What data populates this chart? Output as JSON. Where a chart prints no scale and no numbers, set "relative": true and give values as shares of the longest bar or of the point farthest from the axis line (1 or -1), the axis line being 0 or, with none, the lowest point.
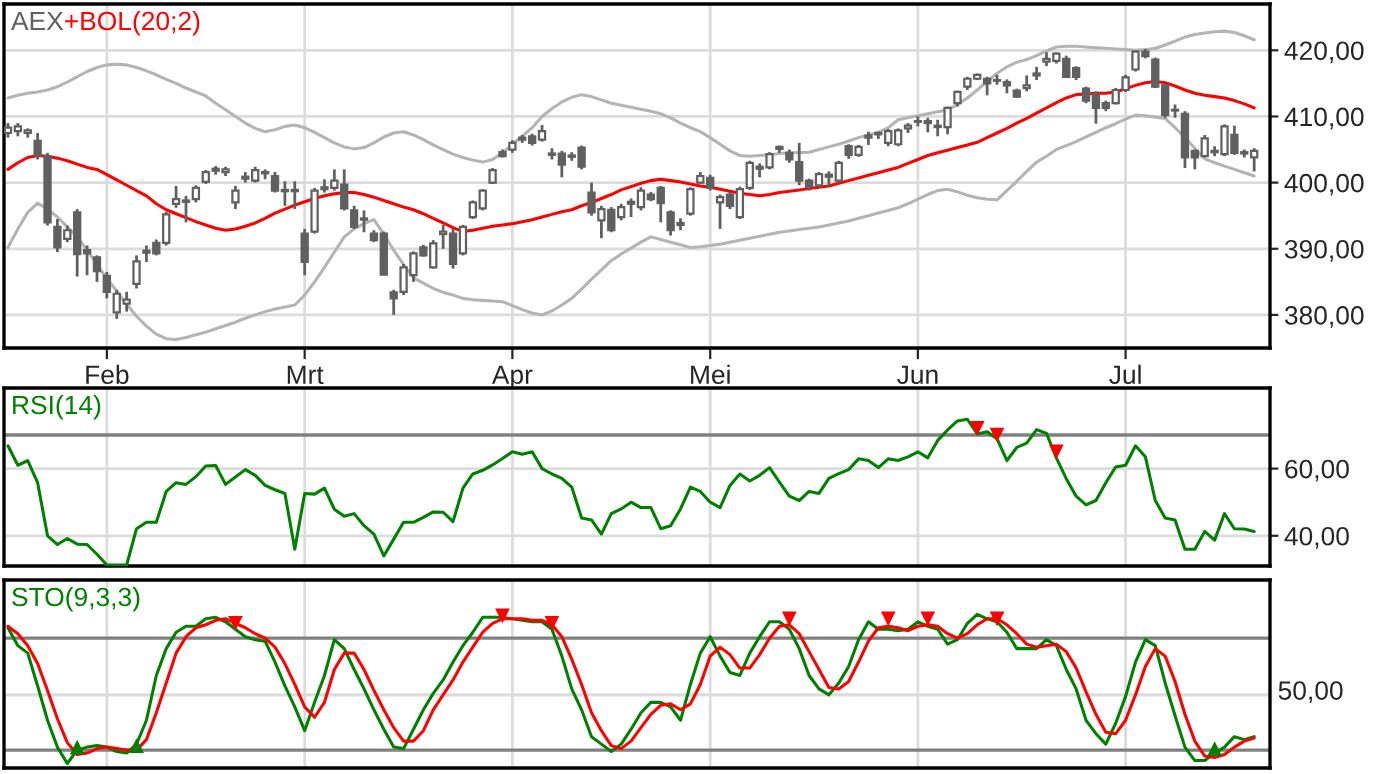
{
  "chart_data": [
    {
      "type": "candlestick",
      "categories": [
        null,
        null,
        null,
        null,
        null,
        null,
        null,
        null,
        null,
        null,
        "Feb",
        null,
        null,
        null,
        null,
        null,
        null,
        null,
        null,
        null,
        null,
        null,
        null,
        null,
        null,
        null,
        null,
        null,
        null,
        null,
        "Mrt",
        null,
        null,
        null,
        null,
        null,
        null,
        null,
        null,
        null,
        null,
        null,
        null,
        null,
        null,
        null,
        null,
        null,
        null,
        null,
        null,
        "Apr",
        null,
        null,
        null,
        null,
        null,
        null,
        null,
        null,
        null,
        null,
        null,
        null,
        null,
        null,
        null,
        null,
        null,
        null,
        null,
        "Mei",
        null,
        null,
        null,
        null,
        null,
        null,
        null,
        null,
        null,
        null,
        null,
        null,
        null,
        null,
        null,
        null,
        null,
        null,
        null,
        null,
        "Jun",
        null,
        null,
        null,
        null,
        null,
        null,
        null,
        null,
        null,
        null,
        null,
        null,
        null,
        null,
        null,
        null,
        null,
        null,
        null,
        null,
        "Jul",
        null,
        null,
        null,
        null,
        null,
        null,
        null,
        null,
        null,
        null,
        null,
        null,
        null
      ],
      "ylim": [
        375,
        427
      ],
      "yticks": [
        {
          "value": 380,
          "label": "380,00"
        },
        {
          "value": 390,
          "label": "390,00"
        },
        {
          "value": 400,
          "label": "400,00"
        },
        {
          "value": 410,
          "label": "410,00"
        },
        {
          "value": 420,
          "label": "420,00"
        }
      ],
      "grid": true,
      "legend": "top left",
      "series": [
        {
          "type": "candlestick",
          "name": "AEX",
          "color": "#606060",
          "ohlc": [
            [
              407.5,
              409,
              406.8,
              408.3
            ],
            [
              407.8,
              409,
              407,
              408.5
            ],
            [
              407.5,
              408.2,
              406.8,
              407.9
            ],
            [
              406.3,
              407.5,
              403.5,
              404.1
            ],
            [
              404,
              404.5,
              393.5,
              394
            ],
            [
              393.3,
              394.5,
              389.5,
              390.2
            ],
            [
              391.5,
              393.5,
              391,
              392.8
            ],
            [
              395.5,
              396,
              385.8,
              389.2
            ],
            [
              389.8,
              390.5,
              386,
              389.3
            ],
            [
              388.7,
              389,
              385,
              386.6
            ],
            [
              385.9,
              386.5,
              382.5,
              383.5
            ],
            [
              380.4,
              383.8,
              379.4,
              383.2
            ],
            [
              381.7,
              383.5,
              380.5,
              382.3
            ],
            [
              384.7,
              389,
              384,
              388.1
            ],
            [
              389.4,
              390.5,
              388,
              389.7
            ],
            [
              390.9,
              391.4,
              389,
              389.3
            ],
            [
              390.9,
              395.6,
              390.5,
              395.2
            ],
            [
              396.8,
              399.5,
              396.2,
              397.5
            ],
            [
              397.3,
              398,
              394,
              397.1
            ],
            [
              397.5,
              399.6,
              397,
              399.2
            ],
            [
              400.1,
              401.9,
              399.8,
              401.6
            ],
            [
              401.8,
              402.5,
              401.2,
              402.1
            ],
            [
              401.6,
              402.4,
              401,
              402
            ],
            [
              397,
              399.5,
              396,
              398.8
            ],
            [
              400.6,
              401.6,
              400,
              400.9
            ],
            [
              400.3,
              402.4,
              400,
              401.9
            ],
            [
              401.4,
              402,
              400.5,
              401.6
            ],
            [
              401,
              401.6,
              398.5,
              398.8
            ],
            [
              398.9,
              400.2,
              396.5,
              398.7
            ],
            [
              398.7,
              400.2,
              396,
              398.9
            ],
            [
              392.3,
              393,
              386,
              388
            ],
            [
              392.6,
              399.2,
              392.3,
              398.8
            ],
            [
              399,
              400.5,
              398.5,
              399.3
            ],
            [
              399.2,
              402,
              398.8,
              400.3
            ],
            [
              399.7,
              402,
              395.8,
              396.1
            ],
            [
              395.8,
              396.5,
              393,
              393.3
            ],
            [
              394.4,
              395.8,
              392.5,
              394.6
            ],
            [
              392.3,
              392.8,
              391,
              391.3
            ],
            [
              392.3,
              392.6,
              386,
              386.1
            ],
            [
              383.4,
              383.8,
              380,
              382.5
            ],
            [
              383.5,
              387.7,
              383,
              387.2
            ],
            [
              386,
              389.6,
              385,
              389.3
            ],
            [
              390.2,
              390.6,
              388.8,
              389
            ],
            [
              387.2,
              391.3,
              387,
              390.8
            ],
            [
              392.2,
              393.6,
              390,
              392.6
            ],
            [
              392.3,
              393,
              387,
              387.7
            ],
            [
              389.3,
              393.6,
              389,
              393.3
            ],
            [
              394.8,
              397.3,
              394.5,
              397
            ],
            [
              396.1,
              399,
              395.8,
              398.8
            ],
            [
              400,
              402.2,
              399.8,
              401.9
            ],
            [
              404.6,
              405,
              403.8,
              404
            ],
            [
              405,
              406.4,
              404.5,
              406
            ],
            [
              406.5,
              407.2,
              406,
              406.8
            ],
            [
              407,
              407.4,
              405.6,
              406
            ],
            [
              406.5,
              408.7,
              406.2,
              407.8
            ],
            [
              404.2,
              405.2,
              403.5,
              404.4
            ],
            [
              404.4,
              404.8,
              400.8,
              402.7
            ],
            [
              403.9,
              404.6,
              403.3,
              404.1
            ],
            [
              405.3,
              405.6,
              402,
              402.4
            ],
            [
              398.5,
              400,
              395,
              395.5
            ],
            [
              394.3,
              396.5,
              391.6,
              396
            ],
            [
              395.9,
              396.3,
              392.5,
              392.8
            ],
            [
              394.8,
              396.8,
              394.3,
              396.3
            ],
            [
              396.8,
              397.6,
              394.8,
              397.1
            ],
            [
              396.3,
              399.3,
              395.8,
              398.8
            ],
            [
              398.2,
              398.6,
              397.2,
              397.5
            ],
            [
              399.2,
              399.5,
              394,
              396.9
            ],
            [
              395.5,
              395.8,
              392,
              392.8
            ],
            [
              393.6,
              394.6,
              392.8,
              393.9
            ],
            [
              395.3,
              399.3,
              395,
              399
            ],
            [
              400,
              401.6,
              399.8,
              401
            ],
            [
              400.7,
              401.2,
              398.8,
              399.2
            ],
            [
              397,
              398.2,
              393,
              397.8
            ],
            [
              398.2,
              398.6,
              396,
              396.5
            ],
            [
              394.8,
              399.4,
              394.5,
              399
            ],
            [
              399.2,
              403.3,
              398.9,
              403
            ],
            [
              402.1,
              402.9,
              400.8,
              402.4
            ],
            [
              402.3,
              404.6,
              402,
              404.3
            ],
            [
              405.1,
              405.6,
              404.5,
              405.4
            ],
            [
              404.5,
              405,
              403,
              403.5
            ],
            [
              403.1,
              406,
              399.6,
              400.3
            ],
            [
              400.3,
              400.6,
              398.8,
              399.4
            ],
            [
              399.6,
              401.6,
              399.3,
              401.3
            ],
            [
              400.9,
              401.7,
              399.4,
              401.2
            ],
            [
              400.3,
              403.3,
              400,
              403
            ],
            [
              405.5,
              405.8,
              403.6,
              404.2
            ],
            [
              404.2,
              405.7,
              403.9,
              405.4
            ],
            [
              406.8,
              407.7,
              405.7,
              407.1
            ],
            [
              407.3,
              407.7,
              406.6,
              407.5
            ],
            [
              406,
              408.1,
              405.5,
              407.8
            ],
            [
              405.8,
              408.2,
              405.5,
              407.9
            ],
            [
              408.2,
              409,
              407.5,
              408.6
            ],
            [
              409.2,
              410,
              408.5,
              409.3
            ],
            [
              409,
              409.8,
              407.6,
              409.3
            ],
            [
              408.6,
              409.5,
              407,
              408.4
            ],
            [
              408.4,
              411.5,
              407.3,
              411.3
            ],
            [
              412,
              413.9,
              411.5,
              413.7
            ],
            [
              414.5,
              416,
              414,
              415.7
            ],
            [
              415.7,
              416.5,
              415.5,
              416.3
            ],
            [
              415.7,
              416,
              413.2,
              415
            ],
            [
              415.4,
              416.3,
              414.8,
              415.5
            ],
            [
              415.2,
              415.6,
              413.5,
              414.7
            ],
            [
              413.9,
              414.2,
              412.8,
              413
            ],
            [
              414.3,
              416.2,
              413.8,
              414.7
            ],
            [
              416.2,
              417.5,
              415.5,
              416.5
            ],
            [
              418.3,
              419.7,
              417.6,
              418.7
            ],
            [
              418.4,
              419.7,
              418,
              419.5
            ],
            [
              418.7,
              419.2,
              415.8,
              416
            ],
            [
              417.3,
              417.6,
              415.5,
              416
            ],
            [
              414.2,
              414.5,
              412,
              412.4
            ],
            [
              413.3,
              413.8,
              408.9,
              411.3
            ],
            [
              412,
              412.4,
              410.8,
              411.3
            ],
            [
              412,
              414.3,
              411.8,
              414
            ],
            [
              414,
              416.3,
              413.7,
              415.9
            ],
            [
              417.1,
              420,
              416.8,
              419.8
            ],
            [
              419.8,
              420.2,
              418.8,
              419.1
            ],
            [
              418.6,
              418.9,
              414.3,
              414.5
            ],
            [
              414.7,
              415,
              409.8,
              410.2
            ],
            [
              410.9,
              411.8,
              409.8,
              411
            ],
            [
              410.4,
              410.8,
              402.2,
              403.8
            ],
            [
              404.8,
              405,
              402,
              403.8
            ],
            [
              404,
              407.2,
              403.8,
              406.7
            ],
            [
              404.6,
              405.5,
              404,
              404.8
            ],
            [
              404.3,
              408.8,
              404,
              408.5
            ],
            [
              407.2,
              408.6,
              404.2,
              404.5
            ],
            [
              404.4,
              405,
              403.8,
              404.6
            ],
            [
              403.8,
              405.2,
              401.7,
              404.8
            ]
          ]
        },
        {
          "type": "line",
          "name": "+BOL(20;2)",
          "color": "#ff0000",
          "values": [
            402.0,
            403.0,
            403.8,
            404.1,
            404.0,
            403.7,
            403.3,
            402.8,
            402.3,
            402.0,
            401.2,
            400.4,
            399.6,
            398.8,
            398.0,
            396.8,
            395.9,
            395.3,
            394.7,
            394.1,
            393.6,
            393.1,
            392.8,
            393.0,
            393.4,
            393.9,
            394.6,
            395.4,
            396.0,
            396.6,
            397.1,
            397.6,
            398.0,
            398.3,
            398.5,
            398.5,
            398.2,
            397.8,
            397.3,
            396.8,
            396.3,
            395.9,
            395.3,
            394.6,
            393.9,
            393.2,
            392.6,
            392.8,
            393.1,
            393.4,
            393.6,
            393.8,
            394.1,
            394.4,
            394.8,
            395.2,
            395.6,
            395.9,
            396.5,
            397.0,
            397.6,
            398.2,
            398.9,
            399.4,
            399.9,
            400.3,
            400.5,
            400.3,
            400.1,
            399.8,
            399.5,
            399.3,
            399.0,
            398.7,
            398.4,
            398.2,
            398.0,
            398.2,
            398.5,
            398.7,
            398.9,
            399.1,
            399.3,
            399.5,
            399.9,
            400.3,
            400.7,
            401.1,
            401.5,
            401.9,
            402.3,
            402.9,
            403.5,
            404.1,
            404.5,
            404.9,
            405.3,
            405.7,
            406.1,
            406.8,
            407.5,
            408.2,
            409.0,
            409.7,
            410.5,
            411.3,
            412.1,
            412.8,
            413.3,
            413.4,
            413.5,
            413.5,
            413.7,
            414.2,
            414.7,
            415.1,
            415.3,
            415.1,
            414.6,
            414.0,
            413.5,
            413.2,
            413.0,
            412.8,
            412.4,
            411.9,
            411.3
          ]
        },
        {
          "type": "line",
          "color": "#b4b4b4",
          "values": [
            412.8,
            413.2,
            413.5,
            413.7,
            414.0,
            414.5,
            415.2,
            416.0,
            416.8,
            417.4,
            417.8,
            417.9,
            417.8,
            417.4,
            416.9,
            416.3,
            415.6,
            415.0,
            414.3,
            413.7,
            413.1,
            412.0,
            411.0,
            410.0,
            409.0,
            408.2,
            407.7,
            408.0,
            408.5,
            408.7,
            408.3,
            407.6,
            406.8,
            406.0,
            405.4,
            405.1,
            405.3,
            406.0,
            406.9,
            407.5,
            407.7,
            407.2,
            406.5,
            405.7,
            405.0,
            404.3,
            403.8,
            403.4,
            403.1,
            403.5,
            404.5,
            405.8,
            407.0,
            408.3,
            410.0,
            411.2,
            412.2,
            412.9,
            413.3,
            413.0,
            412.5,
            412.0,
            411.7,
            411.4,
            411.1,
            410.8,
            410.4,
            409.8,
            409.0,
            408.3,
            407.7,
            406.8,
            405.8,
            404.8,
            404.1,
            404.0,
            404.1,
            404.2,
            404.4,
            404.5,
            404.5,
            404.6,
            405.0,
            405.4,
            405.8,
            406.3,
            406.8,
            407.2,
            407.6,
            408.3,
            409.5,
            409.8,
            410.1,
            410.4,
            410.7,
            411.0,
            411.8,
            412.8,
            414.0,
            415.3,
            416.5,
            417.5,
            418.2,
            418.6,
            419.2,
            419.9,
            420.5,
            420.6,
            420.6,
            420.5,
            420.4,
            420.3,
            420.2,
            420.1,
            420.0,
            420.1,
            420.3,
            420.8,
            421.4,
            422.0,
            422.4,
            422.6,
            422.8,
            422.9,
            422.7,
            422.2,
            421.6
          ]
        },
        {
          "type": "line",
          "color": "#b4b4b4",
          "values": [
            390.2,
            393.0,
            395.5,
            396.9,
            396.0,
            394.8,
            393.3,
            391.8,
            389.8,
            387.6,
            385.5,
            383.6,
            381.6,
            379.8,
            378.3,
            377.1,
            376.4,
            376.3,
            376.6,
            377.0,
            377.4,
            377.9,
            378.4,
            378.9,
            379.5,
            380.0,
            380.5,
            380.9,
            381.2,
            381.5,
            383.0,
            385.0,
            387.2,
            389.5,
            391.8,
            393.0,
            393.8,
            394.4,
            392.2,
            389.8,
            387.6,
            385.6,
            384.8,
            384.0,
            383.4,
            383.0,
            382.5,
            382.3,
            382.2,
            382.1,
            382.0,
            381.4,
            380.8,
            380.3,
            380.0,
            380.6,
            381.5,
            382.5,
            383.9,
            385.4,
            386.8,
            388.2,
            389.2,
            390.1,
            391.0,
            391.8,
            391.4,
            391.0,
            390.6,
            390.2,
            390.3,
            390.5,
            390.7,
            391.0,
            391.3,
            391.6,
            391.9,
            392.2,
            392.5,
            392.7,
            392.9,
            393.1,
            393.3,
            393.6,
            393.9,
            394.2,
            394.6,
            395.0,
            395.4,
            395.8,
            396.2,
            396.8,
            397.5,
            398.2,
            398.8,
            399.0,
            398.6,
            398.1,
            397.7,
            397.5,
            397.4,
            398.8,
            400.2,
            401.7,
            403.1,
            404.0,
            405.0,
            405.6,
            406.2,
            406.9,
            407.6,
            408.3,
            408.9,
            409.6,
            410.2,
            410.1,
            409.9,
            409.7,
            408.3,
            406.8,
            405.2,
            403.6,
            403.0,
            402.5,
            402.0,
            401.5,
            401.0
          ]
        }
      ]
    },
    {
      "type": "line",
      "ylim": [
        31,
        84
      ],
      "yticks": [
        {
          "value": 40,
          "label": "40,00"
        },
        {
          "value": 60,
          "label": "60,00"
        }
      ],
      "grid": true,
      "legend": "top left",
      "tick_labels": "y",
      "ref_lines": [
        {
          "axis": "y",
          "value": 70,
          "color": "#808080"
        }
      ],
      "series": [
        {
          "name": "RSI(14)",
          "color": "#008000",
          "values": [
            66.8,
            61,
            62.4,
            55.8,
            40,
            37.4,
            39.2,
            37.5,
            37.4,
            34.5,
            31.3,
            31.3,
            31.3,
            42.1,
            44,
            44,
            53.2,
            55.8,
            55.3,
            57.6,
            60.8,
            60.9,
            55.3,
            57.5,
            59.7,
            58,
            55,
            53.7,
            52.6,
            36,
            52.6,
            52.4,
            54.2,
            47.9,
            45.8,
            46.6,
            43,
            40.5,
            34,
            39,
            44,
            44,
            45.5,
            47.1,
            47,
            44.2,
            54.2,
            58.4,
            59.5,
            61.1,
            63,
            65,
            64.3,
            65,
            60,
            58.4,
            57.1,
            54.5,
            45.3,
            44.7,
            40.5,
            46.6,
            48,
            50,
            48.4,
            48.4,
            42.1,
            43,
            48,
            54.5,
            53.2,
            50,
            48.4,
            55,
            58.4,
            56.3,
            58,
            60.3,
            56,
            51.8,
            50.5,
            53.2,
            52.6,
            57.1,
            58.5,
            59.7,
            62.9,
            62.4,
            60.3,
            62.9,
            62.4,
            63.5,
            65,
            63.2,
            68.4,
            71.5,
            74.2,
            74.7,
            70.3,
            71,
            68.9,
            62.4,
            66.3,
            67.6,
            71.6,
            70.5,
            63.2,
            57,
            51.8,
            49.2,
            50.5,
            55.8,
            60.5,
            61,
            66.8,
            63.5,
            50.5,
            45.3,
            44.7,
            36,
            36,
            41.3,
            38.7,
            46.6,
            42.1,
            42,
            41.3
          ]
        },
        {
          "type": "scatter",
          "color": "#ff0000",
          "marker": "triangle",
          "values": [
            null,
            null,
            null,
            null,
            null,
            null,
            null,
            null,
            null,
            null,
            null,
            null,
            null,
            null,
            null,
            null,
            null,
            null,
            null,
            null,
            null,
            null,
            null,
            null,
            null,
            null,
            null,
            null,
            null,
            null,
            null,
            null,
            null,
            null,
            null,
            null,
            null,
            null,
            null,
            null,
            null,
            null,
            null,
            null,
            null,
            null,
            null,
            null,
            null,
            null,
            null,
            null,
            null,
            null,
            null,
            null,
            null,
            null,
            null,
            null,
            null,
            null,
            null,
            null,
            null,
            null,
            null,
            null,
            null,
            null,
            null,
            null,
            null,
            null,
            null,
            null,
            null,
            null,
            null,
            null,
            null,
            null,
            null,
            null,
            null,
            null,
            null,
            null,
            null,
            null,
            null,
            null,
            null,
            null,
            null,
            null,
            null,
            null,
            72,
            null,
            70,
            null,
            null,
            null,
            null,
            null,
            65,
            null,
            null,
            null,
            null,
            null,
            null,
            null,
            null,
            null,
            null,
            null,
            null,
            null,
            null,
            null,
            null,
            null,
            null,
            null,
            null
          ]
        }
      ]
    },
    {
      "type": "line",
      "relative": true,
      "grid": "x",
      "legend": "top left",
      "tick_labels": "y",
      "annotations": [
        "50,00"
      ],
      "ref_lines": [
        {
          "axis": "y",
          "value": 0.46,
          "color": "#dcdcdc"
        },
        {
          "axis": "y",
          "value": 0.09,
          "color": "#808080"
        },
        {
          "axis": "y",
          "value": 0.84,
          "color": "#808080"
        }
      ],
      "series": [
        {
          "name": "STO(9,3,3)",
          "color": "#008000",
          "values": [
            0.91,
            0.79,
            0.74,
            0.52,
            0.29,
            0.11,
            0,
            0.09,
            0.11,
            0.12,
            0.11,
            0.08,
            0.07,
            0.13,
            0.29,
            0.59,
            0.77,
            0.88,
            0.92,
            0.92,
            0.97,
            0.98,
            0.95,
            0.9,
            0.85,
            0.83,
            0.82,
            0.68,
            0.52,
            0.38,
            0.22,
            0.41,
            0.59,
            0.83,
            0.77,
            0.63,
            0.5,
            0.36,
            0.23,
            0.11,
            0.1,
            0.23,
            0.36,
            0.47,
            0.56,
            0.68,
            0.79,
            0.88,
            0.98,
            0.98,
            0.98,
            0.97,
            0.96,
            0.95,
            0.95,
            0.9,
            0.72,
            0.5,
            0.36,
            0.18,
            0.13,
            0.08,
            0.13,
            0.23,
            0.34,
            0.41,
            0.41,
            0.38,
            0.29,
            0.53,
            0.74,
            0.85,
            0.72,
            0.61,
            0.59,
            0.74,
            0.85,
            0.95,
            0.95,
            0.9,
            0.77,
            0.59,
            0.5,
            0.46,
            0.54,
            0.65,
            0.83,
            0.95,
            0.9,
            0.9,
            0.89,
            0.9,
            0.95,
            0.92,
            0.9,
            0.8,
            0.83,
            0.94,
            1,
            0.97,
            0.95,
            0.88,
            0.77,
            0.77,
            0.77,
            0.83,
            0.79,
            0.63,
            0.5,
            0.29,
            0.2,
            0.13,
            0.27,
            0.45,
            0.68,
            0.83,
            0.79,
            0.54,
            0.32,
            0.11,
            0.02,
            0.02,
            0.07,
            0.11,
            0.18,
            0.16,
            0.18
          ]
        },
        {
          "color": "#ff0000",
          "values": [
            0.92,
            0.87,
            0.79,
            0.67,
            0.49,
            0.3,
            0.14,
            0.06,
            0.07,
            0.1,
            0.11,
            0.1,
            0.09,
            0.09,
            0.16,
            0.34,
            0.54,
            0.74,
            0.85,
            0.91,
            0.93,
            0.96,
            0.97,
            0.94,
            0.91,
            0.87,
            0.84,
            0.78,
            0.67,
            0.53,
            0.38,
            0.31,
            0.41,
            0.63,
            0.74,
            0.74,
            0.63,
            0.49,
            0.36,
            0.24,
            0.15,
            0.15,
            0.22,
            0.36,
            0.46,
            0.56,
            0.68,
            0.78,
            0.88,
            0.94,
            0.97,
            0.97,
            0.97,
            0.96,
            0.96,
            0.93,
            0.85,
            0.7,
            0.53,
            0.34,
            0.22,
            0.12,
            0.1,
            0.15,
            0.24,
            0.33,
            0.39,
            0.4,
            0.36,
            0.4,
            0.53,
            0.72,
            0.78,
            0.73,
            0.64,
            0.64,
            0.73,
            0.84,
            0.92,
            0.93,
            0.87,
            0.75,
            0.63,
            0.51,
            0.5,
            0.55,
            0.68,
            0.82,
            0.91,
            0.92,
            0.91,
            0.89,
            0.92,
            0.93,
            0.92,
            0.87,
            0.84,
            0.87,
            0.93,
            0.97,
            0.97,
            0.93,
            0.87,
            0.8,
            0.78,
            0.79,
            0.8,
            0.75,
            0.64,
            0.48,
            0.33,
            0.21,
            0.2,
            0.29,
            0.46,
            0.65,
            0.77,
            0.72,
            0.55,
            0.33,
            0.15,
            0.05,
            0.04,
            0.06,
            0.11,
            0.15,
            0.17
          ]
        },
        {
          "type": "scatter",
          "color": "#ff0000",
          "marker": "triangle",
          "values": [
            null,
            null,
            null,
            null,
            null,
            null,
            null,
            null,
            null,
            null,
            null,
            null,
            null,
            null,
            null,
            null,
            null,
            null,
            null,
            null,
            null,
            null,
            null,
            0.94,
            null,
            null,
            null,
            null,
            null,
            null,
            null,
            null,
            null,
            null,
            null,
            null,
            null,
            null,
            null,
            null,
            null,
            null,
            null,
            null,
            null,
            null,
            null,
            null,
            null,
            null,
            0.99,
            null,
            null,
            null,
            null,
            0.94,
            null,
            null,
            null,
            null,
            null,
            null,
            null,
            null,
            null,
            null,
            null,
            null,
            null,
            null,
            null,
            null,
            null,
            null,
            null,
            null,
            null,
            null,
            null,
            0.97,
            null,
            null,
            null,
            null,
            null,
            null,
            null,
            null,
            null,
            0.97,
            null,
            null,
            null,
            0.97,
            null,
            null,
            null,
            null,
            null,
            null,
            0.97,
            null,
            null,
            null,
            null,
            null,
            null,
            null,
            null,
            null,
            null,
            null,
            null,
            null,
            null,
            null,
            null,
            null,
            null,
            null,
            null,
            null,
            null,
            null,
            null,
            null,
            null
          ]
        },
        {
          "type": "scatter",
          "color": "#008000",
          "marker": "triangle",
          "values": [
            null,
            null,
            null,
            null,
            null,
            null,
            null,
            0.11,
            null,
            null,
            null,
            null,
            null,
            0.12,
            null,
            null,
            null,
            null,
            null,
            null,
            null,
            null,
            null,
            null,
            null,
            null,
            null,
            null,
            null,
            null,
            null,
            null,
            null,
            null,
            null,
            null,
            null,
            null,
            null,
            null,
            null,
            null,
            null,
            null,
            null,
            null,
            null,
            null,
            null,
            null,
            null,
            null,
            null,
            null,
            null,
            null,
            null,
            null,
            null,
            null,
            null,
            null,
            null,
            null,
            null,
            null,
            null,
            null,
            null,
            null,
            null,
            null,
            null,
            null,
            null,
            null,
            null,
            null,
            null,
            null,
            null,
            null,
            null,
            null,
            null,
            null,
            null,
            null,
            null,
            null,
            null,
            null,
            null,
            null,
            null,
            null,
            null,
            null,
            null,
            null,
            null,
            null,
            null,
            null,
            null,
            null,
            null,
            null,
            null,
            null,
            null,
            null,
            null,
            null,
            null,
            null,
            null,
            null,
            null,
            null,
            null,
            null,
            0.1,
            null,
            null,
            null,
            null
          ]
        }
      ]
    }
  ]
}
